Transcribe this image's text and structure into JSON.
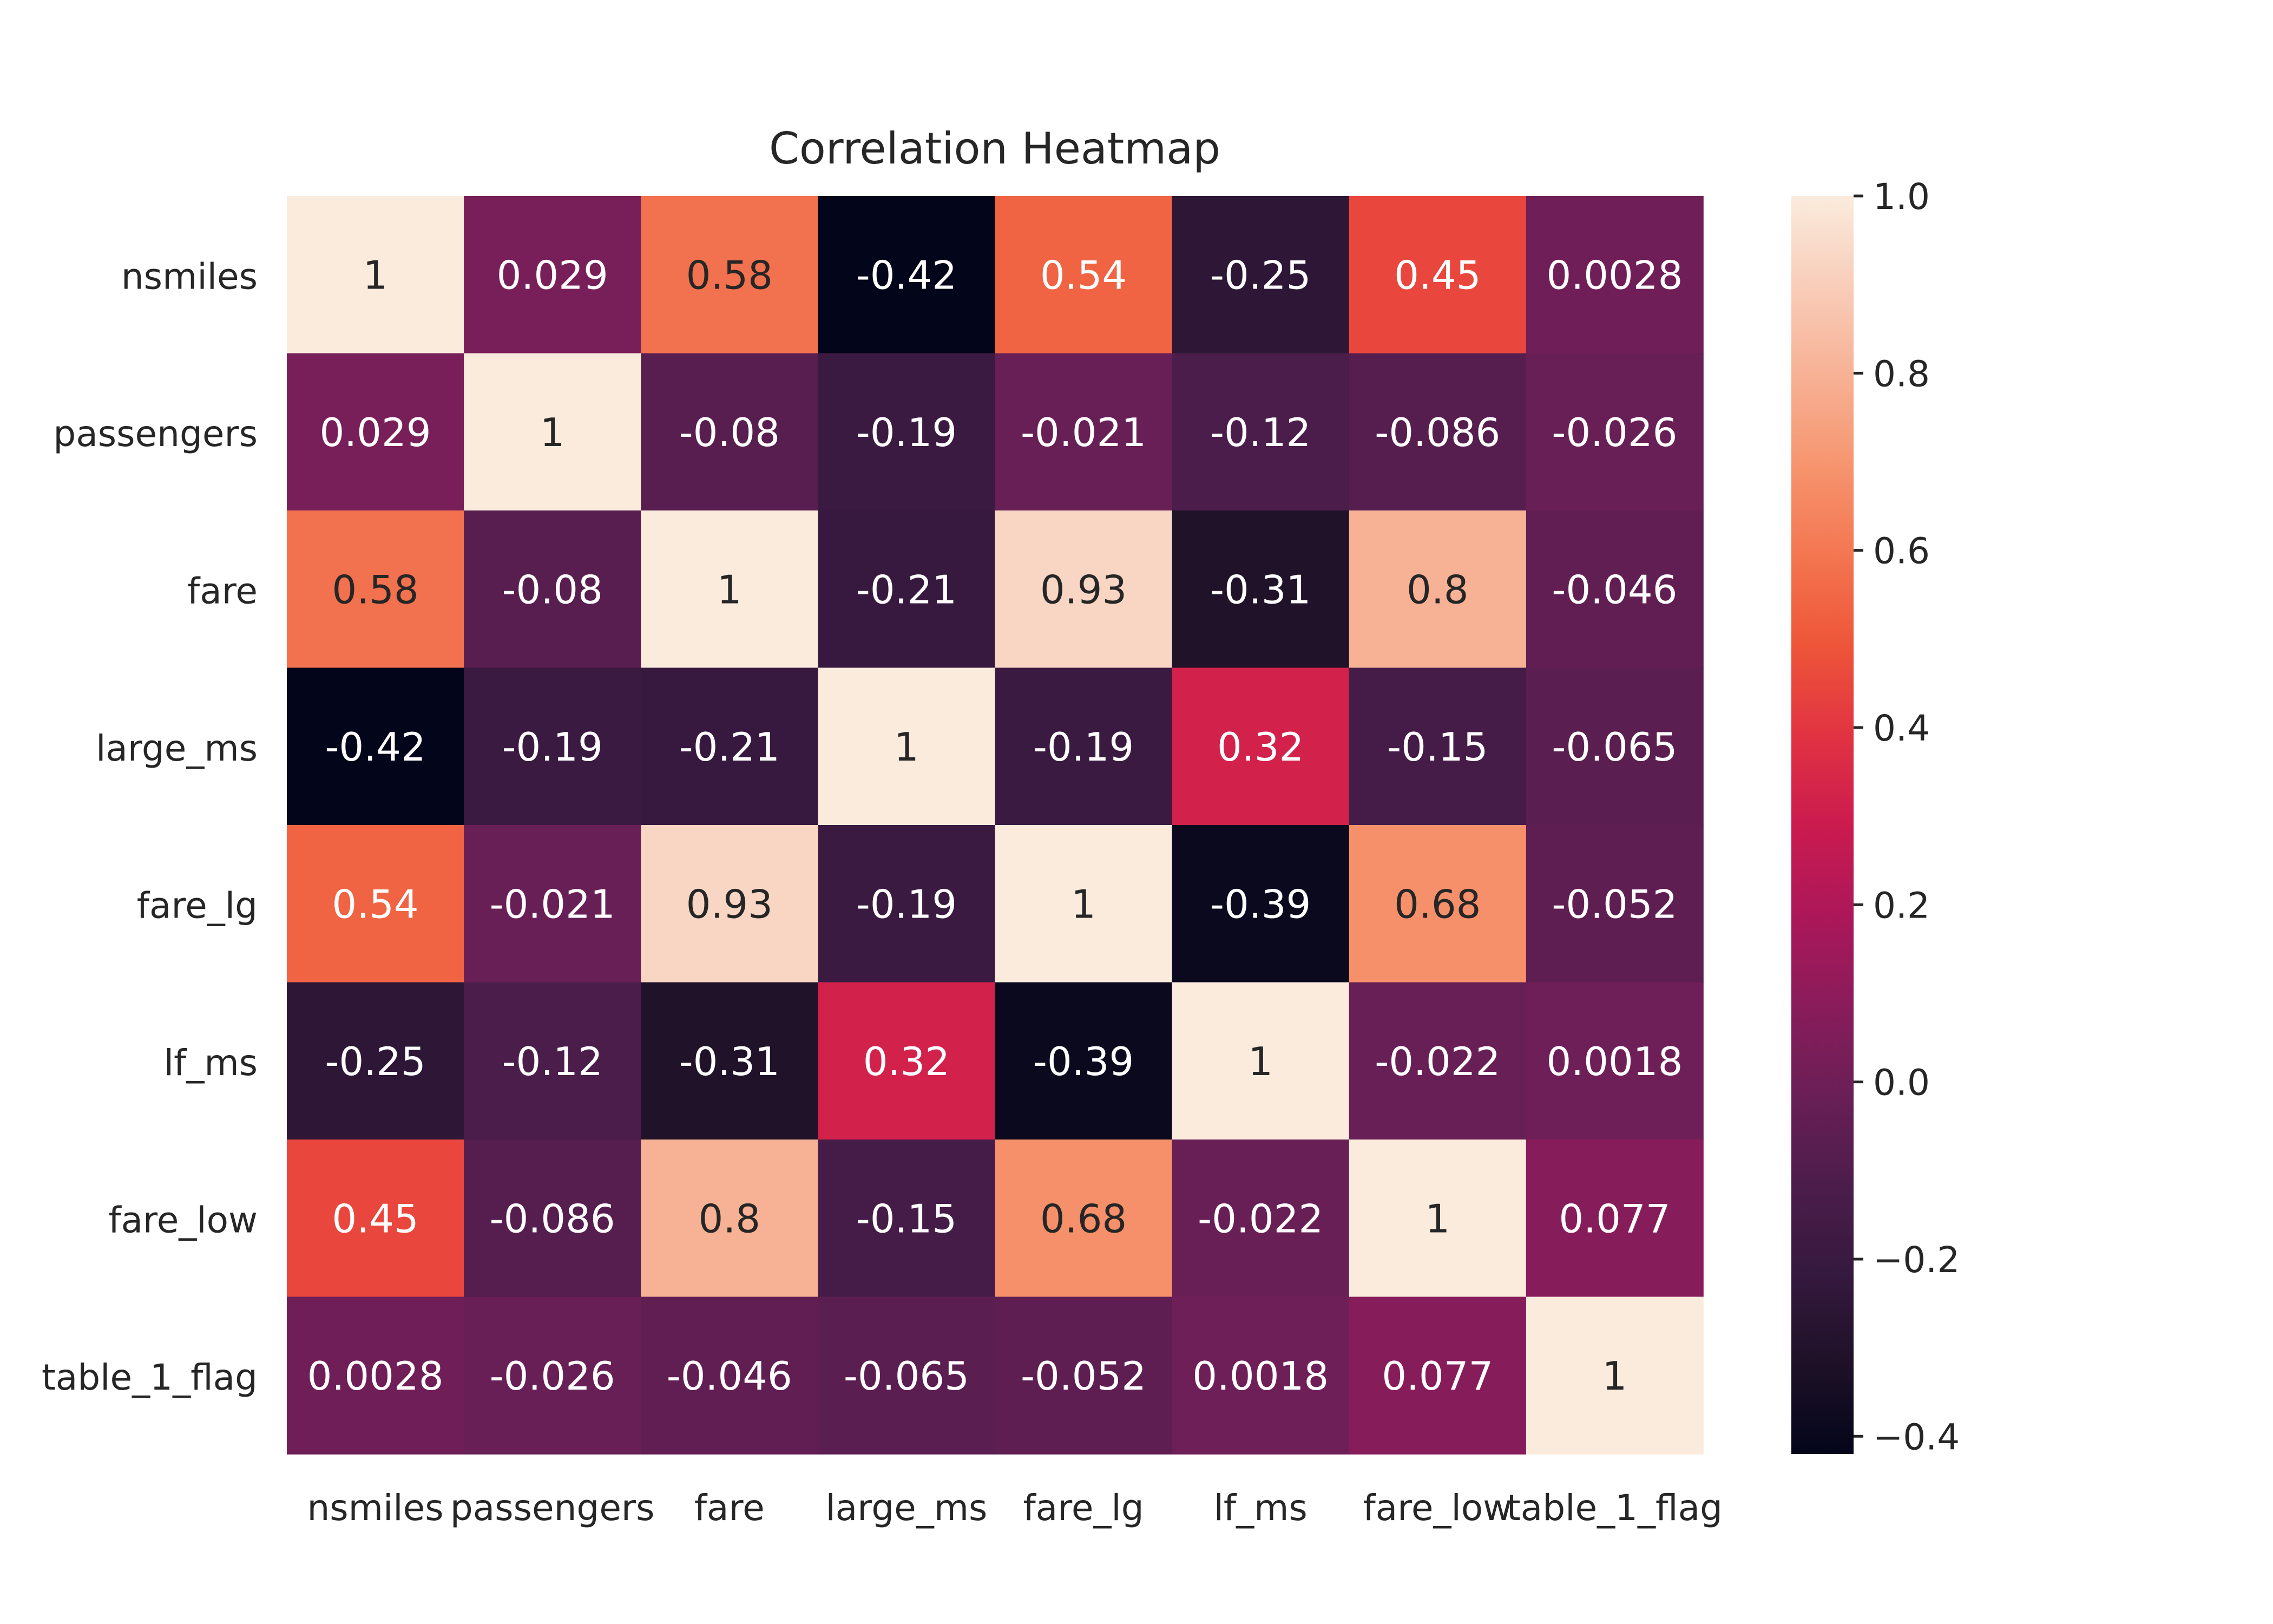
{
  "chart_data": {
    "type": "heatmap",
    "title": "Correlation Heatmap",
    "xlabel": "",
    "ylabel": "",
    "labels": [
      "nsmiles",
      "passengers",
      "fare",
      "large_ms",
      "fare_lg",
      "lf_ms",
      "fare_low",
      "table_1_flag"
    ],
    "matrix": [
      [
        1,
        0.029,
        0.58,
        -0.42,
        0.54,
        -0.25,
        0.45,
        0.0028
      ],
      [
        0.029,
        1,
        -0.08,
        -0.19,
        -0.021,
        -0.12,
        -0.086,
        -0.026
      ],
      [
        0.58,
        -0.08,
        1,
        -0.21,
        0.93,
        -0.31,
        0.8,
        -0.046
      ],
      [
        -0.42,
        -0.19,
        -0.21,
        1,
        -0.19,
        0.32,
        -0.15,
        -0.065
      ],
      [
        0.54,
        -0.021,
        0.93,
        -0.19,
        1,
        -0.39,
        0.68,
        -0.052
      ],
      [
        -0.25,
        -0.12,
        -0.31,
        0.32,
        -0.39,
        1,
        -0.022,
        0.0018
      ],
      [
        0.45,
        -0.086,
        0.8,
        -0.15,
        0.68,
        -0.022,
        1,
        0.077
      ],
      [
        0.0028,
        -0.026,
        -0.046,
        -0.065,
        -0.052,
        0.0018,
        0.077,
        1
      ]
    ],
    "cell_labels": [
      [
        "1",
        "0.029",
        "0.58",
        "-0.42",
        "0.54",
        "-0.25",
        "0.45",
        "0.0028"
      ],
      [
        "0.029",
        "1",
        "-0.08",
        "-0.19",
        "-0.021",
        "-0.12",
        "-0.086",
        "-0.026"
      ],
      [
        "0.58",
        "-0.08",
        "1",
        "-0.21",
        "0.93",
        "-0.31",
        "0.8",
        "-0.046"
      ],
      [
        "-0.42",
        "-0.19",
        "-0.21",
        "1",
        "-0.19",
        "0.32",
        "-0.15",
        "-0.065"
      ],
      [
        "0.54",
        "-0.021",
        "0.93",
        "-0.19",
        "1",
        "-0.39",
        "0.68",
        "-0.052"
      ],
      [
        "-0.25",
        "-0.12",
        "-0.31",
        "0.32",
        "-0.39",
        "1",
        "-0.022",
        "0.0018"
      ],
      [
        "0.45",
        "-0.086",
        "0.8",
        "-0.15",
        "0.68",
        "-0.022",
        "1",
        "0.077"
      ],
      [
        "0.0028",
        "-0.026",
        "-0.046",
        "-0.065",
        "-0.052",
        "0.0018",
        "0.077",
        "1"
      ]
    ],
    "colorscale": {
      "name": "rocket",
      "vmin": -0.42,
      "vmax": 1.0,
      "stops": [
        "#03051a",
        "#1e1127",
        "#35193e",
        "#4c1d4b",
        "#6a1f56",
        "#8a1c5b",
        "#ac1759",
        "#cb1b4f",
        "#e13342",
        "#ee5539",
        "#f37651",
        "#f6956f",
        "#f7b195",
        "#f8cdb9",
        "#faebdd"
      ]
    },
    "colorbar": {
      "ticks": [
        1.0,
        0.8,
        0.6,
        0.4,
        0.2,
        0.0,
        -0.2,
        -0.4
      ],
      "tick_labels": [
        "1.0",
        "0.8",
        "0.6",
        "0.4",
        "0.2",
        "0.0",
        "−0.2",
        "−0.4"
      ]
    },
    "grid": false,
    "legend": "colorbar-right"
  }
}
